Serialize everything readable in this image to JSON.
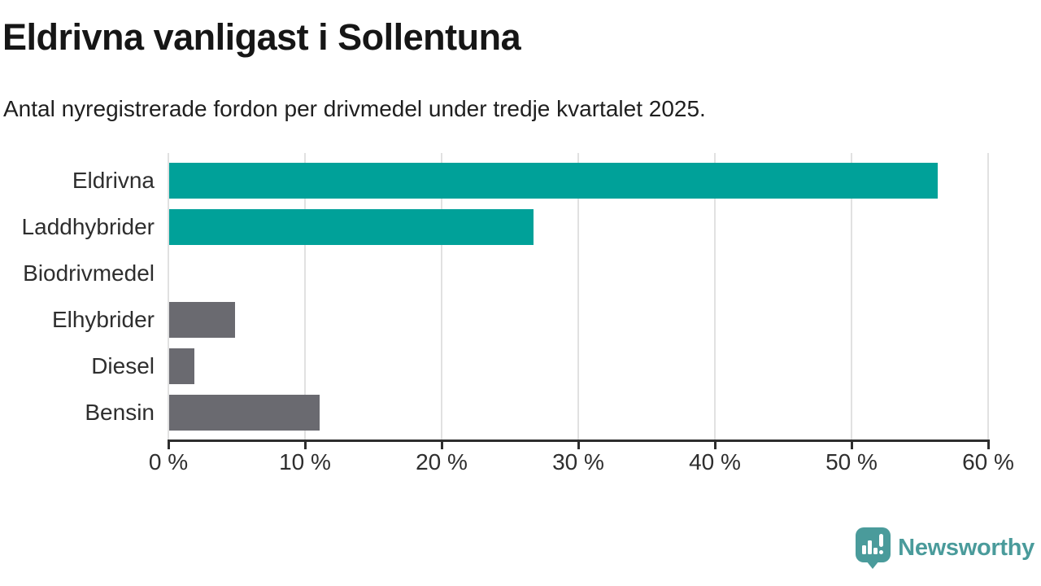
{
  "header": {
    "title": "Eldrivna vanligast i Sollentuna",
    "subtitle": "Antal nyregistrerade fordon per drivmedel under tredje kvartalet 2025."
  },
  "chart_data": {
    "type": "bar",
    "orientation": "horizontal",
    "title": "Eldrivna vanligast i Sollentuna",
    "subtitle": "Antal nyregistrerade fordon per drivmedel under tredje kvartalet 2025.",
    "categories": [
      "Eldrivna",
      "Laddhybrider",
      "Biodrivmedel",
      "Elhybrider",
      "Diesel",
      "Bensin"
    ],
    "values": [
      56.3,
      26.7,
      0,
      4.9,
      1.9,
      11.1
    ],
    "unit": "%",
    "bar_colors": [
      "#00a199",
      "#00a199",
      "#6a6a70",
      "#6a6a70",
      "#6a6a70",
      "#6a6a70"
    ],
    "xlabel": "",
    "ylabel": "",
    "xlim": [
      0,
      60
    ],
    "x_ticks": [
      0,
      10,
      20,
      30,
      40,
      50,
      60
    ],
    "x_tick_labels": [
      "0 %",
      "10 %",
      "20 %",
      "30 %",
      "40 %",
      "50 %",
      "60 %"
    ],
    "grid": "vertical-light",
    "legend_position": "none",
    "value_labels": "none"
  },
  "branding": {
    "logo_text": "Newsworthy",
    "logo_color": "#4a9b9b",
    "icon": "newsworthy-speech-bubble-bar-chart-icon"
  },
  "colors": {
    "accent_teal": "#00a199",
    "neutral_gray": "#6a6a70",
    "grid": "#e1e1e1",
    "axis": "#2e2e2e",
    "title_text": "#161616",
    "background": "#ffffff"
  }
}
